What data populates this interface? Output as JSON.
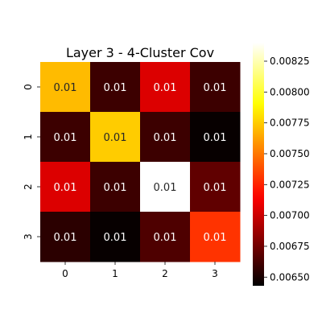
{
  "chart_data": {
    "type": "heatmap",
    "title": "Layer 3 - 4-Cluster Cov",
    "xlabel": "",
    "ylabel": "",
    "x_categories": [
      "0",
      "1",
      "2",
      "3"
    ],
    "y_categories": [
      "0",
      "1",
      "2",
      "3"
    ],
    "values": [
      [
        0.0077,
        0.0066,
        0.00705,
        0.0066
      ],
      [
        0.0066,
        0.00775,
        0.0066,
        0.00645
      ],
      [
        0.00705,
        0.0066,
        0.0084,
        0.0067
      ],
      [
        0.00655,
        0.00645,
        0.00665,
        0.0073
      ]
    ],
    "annotations": [
      [
        "0.01",
        "0.01",
        "0.01",
        "0.01"
      ],
      [
        "0.01",
        "0.01",
        "0.01",
        "0.01"
      ],
      [
        "0.01",
        "0.01",
        "0.01",
        "0.01"
      ],
      [
        "0.01",
        "0.01",
        "0.01",
        "0.01"
      ]
    ],
    "colormap": "hot",
    "vmin": 0.00643,
    "vmax": 0.0084,
    "colorbar_ticks": [
      "0.00650",
      "0.00675",
      "0.00700",
      "0.00725",
      "0.00750",
      "0.00775",
      "0.00800",
      "0.00825"
    ],
    "colorbar_tick_values": [
      0.0065,
      0.00675,
      0.007,
      0.00725,
      0.0075,
      0.00775,
      0.008,
      0.00825
    ],
    "grid": false,
    "legend": "colorbar-right"
  }
}
